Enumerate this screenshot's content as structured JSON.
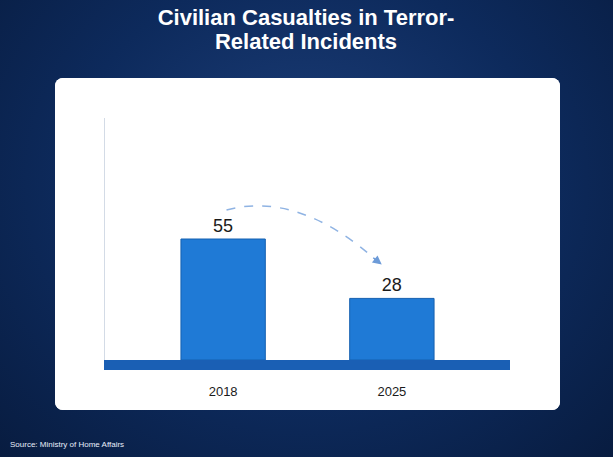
{
  "chart_data": {
    "type": "bar",
    "title": "Civilian Casualties in Terror-Related Incidents",
    "categories": [
      "2018",
      "2025"
    ],
    "values": [
      55,
      28
    ],
    "color": "#1f7ad6",
    "ylim": [
      0,
      110
    ],
    "data_labels": true,
    "tick_labels": "x",
    "grid": false,
    "source": "Source: Ministry of Home Affairs"
  }
}
